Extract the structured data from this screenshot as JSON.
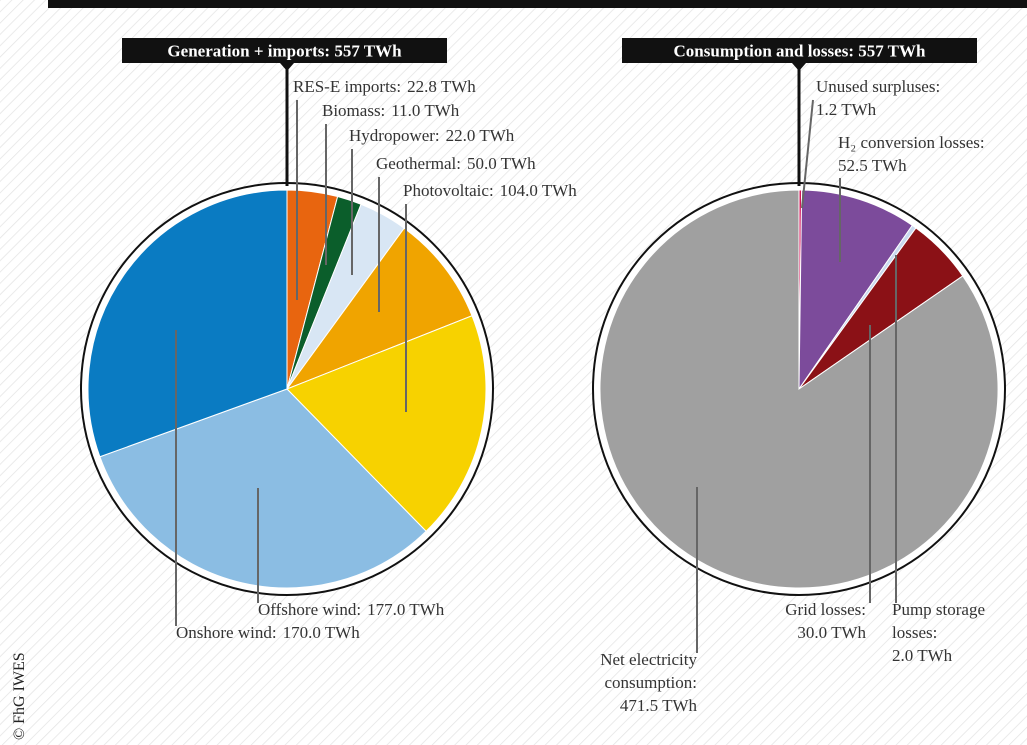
{
  "credit": "© FhG IWES",
  "chart_data": [
    {
      "type": "pie",
      "title": "Generation + imports: 557 TWh",
      "categories": [
        "RES-E imports:",
        "Biomass:",
        "Hydropower:",
        "Geothermal:",
        "Photovoltaic:",
        "Offshore wind:",
        "Onshore wind:"
      ],
      "values": [
        22.8,
        11.0,
        22.0,
        50.0,
        104.0,
        177.0,
        170.0
      ],
      "value_labels": [
        "22.8 TWh",
        "11.0 TWh",
        "22.0 TWh",
        "50.0 TWh",
        "104.0 TWh",
        "177.0 TWh",
        "170.0 TWh"
      ],
      "colors": [
        "#e8650f",
        "#0b5e2b",
        "#d8e6f4",
        "#f0a400",
        "#f7d200",
        "#8bbde3",
        "#0a7bc2"
      ]
    },
    {
      "type": "pie",
      "title": "Consumption and losses: 557 TWh",
      "categories": [
        "Unused surpluses:",
        "H₂ conversion losses:",
        "Pump storage\nlosses:",
        "Grid losses:",
        "Net electricity\nconsumption:"
      ],
      "values": [
        1.2,
        52.5,
        2.0,
        30.0,
        471.5
      ],
      "value_labels": [
        "1.2 TWh",
        "52.5 TWh",
        "2.0 TWh",
        "30.0 TWh",
        "471.5 TWh"
      ],
      "colors": [
        "#d4145a",
        "#7c4b9b",
        "#c9d9ef",
        "#8b1116",
        "#a0a0a0"
      ]
    }
  ]
}
